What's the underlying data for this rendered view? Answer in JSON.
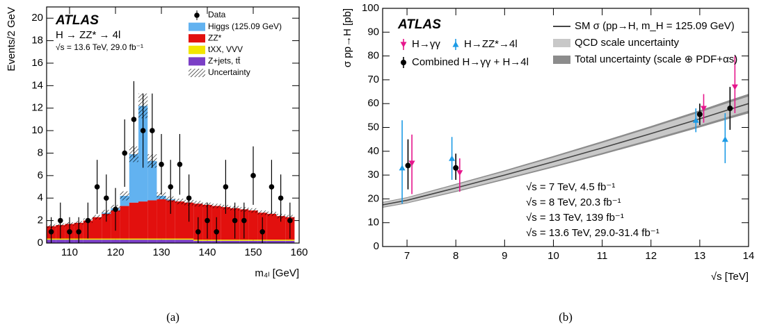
{
  "chart_data": [
    {
      "type": "histogram",
      "annotations": [
        "ATLAS",
        "H → ZZ* → 4l",
        "√s = 13.6 TeV, 29.0 fb⁻¹"
      ],
      "xlabel": "m₄ₗ [GeV]",
      "ylabel": "Events/2 GeV",
      "caption": "(a)",
      "bins": [
        105,
        107,
        109,
        111,
        113,
        115,
        117,
        119,
        121,
        123,
        125,
        127,
        129,
        131,
        133,
        135,
        137,
        139,
        141,
        143,
        145,
        147,
        149,
        151,
        153,
        155,
        157,
        159
      ],
      "xlim": [
        105,
        160
      ],
      "ylim": [
        0,
        21
      ],
      "xticks": [
        110,
        120,
        130,
        140,
        150,
        160
      ],
      "yticks": [
        0,
        2,
        4,
        6,
        8,
        10,
        12,
        14,
        16,
        18,
        20
      ],
      "series": [
        {
          "name": "Z+jets, tt̄",
          "color": "#7b3fc6",
          "values": [
            0.3,
            0.3,
            0.3,
            0.3,
            0.3,
            0.3,
            0.3,
            0.3,
            0.3,
            0.3,
            0.3,
            0.3,
            0.3,
            0.3,
            0.3,
            0.3,
            0.2,
            0.2,
            0.2,
            0.2,
            0.2,
            0.2,
            0.2,
            0.2,
            0.2,
            0.2,
            0.2
          ]
        },
        {
          "name": "tXX, VVV",
          "color": "#f2e600",
          "values": [
            0.1,
            0.1,
            0.1,
            0.1,
            0.1,
            0.1,
            0.1,
            0.1,
            0.1,
            0.1,
            0.1,
            0.1,
            0.1,
            0.1,
            0.1,
            0.1,
            0.1,
            0.1,
            0.1,
            0.1,
            0.1,
            0.1,
            0.1,
            0.1,
            0.1,
            0.1,
            0.1
          ]
        },
        {
          "name": "ZZ*",
          "color": "#e2100e",
          "values": [
            1.1,
            1.2,
            1.3,
            1.4,
            1.6,
            1.9,
            2.2,
            2.5,
            2.9,
            3.2,
            3.3,
            3.4,
            3.5,
            3.4,
            3.3,
            3.2,
            3.2,
            3.1,
            3.0,
            2.9,
            2.8,
            2.7,
            2.6,
            2.4,
            2.3,
            2.1,
            2.0
          ]
        },
        {
          "name": "Higgs (125.09 GeV)",
          "color": "#62b2f0",
          "values": [
            0,
            0,
            0,
            0,
            0,
            0,
            0.1,
            0.2,
            0.9,
            4.3,
            8.5,
            3.5,
            0.3,
            0.1,
            0,
            0,
            0,
            0,
            0,
            0,
            0,
            0,
            0,
            0,
            0,
            0,
            0
          ]
        }
      ],
      "data": {
        "name": "Data",
        "values": [
          1,
          2,
          1,
          1,
          2,
          5,
          4,
          3,
          8,
          11,
          10,
          10,
          7,
          5,
          7,
          4,
          1,
          2,
          1,
          5,
          2,
          2,
          6,
          1,
          5,
          4,
          2
        ],
        "errors": [
          1.3,
          1.6,
          1.3,
          1.3,
          1.6,
          2.4,
          2.1,
          1.9,
          3.0,
          3.4,
          3.3,
          3.3,
          2.7,
          2.4,
          2.7,
          2.1,
          1.3,
          1.6,
          1.3,
          2.4,
          1.6,
          1.6,
          2.6,
          1.3,
          2.4,
          2.1,
          1.6
        ]
      },
      "uncertainty": {
        "name": "Uncertainty",
        "values": [
          0.15,
          0.15,
          0.15,
          0.15,
          0.2,
          0.2,
          0.25,
          0.3,
          0.4,
          0.7,
          1.1,
          0.6,
          0.3,
          0.25,
          0.25,
          0.25,
          0.25,
          0.2,
          0.2,
          0.2,
          0.2,
          0.2,
          0.2,
          0.2,
          0.2,
          0.2,
          0.2
        ]
      }
    },
    {
      "type": "line",
      "annotations": [
        "ATLAS",
        "√s = 7 TeV,  4.5 fb⁻¹",
        "√s = 8 TeV,  20.3 fb⁻¹",
        "√s = 13 TeV, 139 fb⁻¹",
        "√s = 13.6 TeV, 29.0-31.4 fb⁻¹"
      ],
      "xlabel": "√s [TeV]",
      "ylabel": "σ pp→H [pb]",
      "caption": "(b)",
      "xlim": [
        6.5,
        14
      ],
      "ylim": [
        0,
        100
      ],
      "xticks": [
        7,
        8,
        9,
        10,
        11,
        12,
        13,
        14
      ],
      "yticks": [
        0,
        10,
        20,
        30,
        40,
        50,
        60,
        70,
        80,
        90,
        100
      ],
      "sm": {
        "name": "SM σ (pp→H, m_H = 125.09 GeV)",
        "color": "#444444",
        "x": [
          6.5,
          7,
          8,
          9,
          10,
          11,
          12,
          13,
          13.6,
          14
        ],
        "values": [
          17.5,
          19.4,
          24.6,
          30.0,
          35.6,
          41.4,
          47.4,
          53.6,
          57.5,
          60.0
        ],
        "qcd_name": "QCD scale uncertainty",
        "qcd_color": "#c8c8c8",
        "qcd_unc": [
          0.9,
          1.0,
          1.3,
          1.5,
          1.8,
          2.1,
          2.4,
          2.7,
          2.9,
          3.0
        ],
        "total_name": "Total uncertainty (scale ⊕ PDF+αs)",
        "total_color": "#8c8c8c",
        "total_unc": [
          1.2,
          1.3,
          1.7,
          2.0,
          2.4,
          2.8,
          3.2,
          3.6,
          3.9,
          4.1
        ]
      },
      "series": [
        {
          "name": "H→γγ",
          "color": "#e6168c",
          "marker": "down",
          "x": [
            7.1,
            8.08,
            13.08,
            13.72
          ],
          "values": [
            35,
            31,
            58,
            67
          ],
          "yerr_low": [
            13,
            8,
            6,
            11
          ],
          "yerr_high": [
            12,
            6,
            6,
            13
          ]
        },
        {
          "name": "H→ZZ*→4l",
          "color": "#1c9be6",
          "marker": "up",
          "x": [
            6.9,
            7.92,
            12.92,
            13.52
          ],
          "values": [
            33,
            37,
            53,
            45
          ],
          "yerr_low": [
            15,
            9,
            5,
            10
          ],
          "yerr_high": [
            20,
            9,
            5,
            11
          ]
        },
        {
          "name": "Combined H→γγ + H→4l",
          "color": "#000000",
          "marker": "circle",
          "x": [
            7.02,
            8.0,
            13.0,
            13.62
          ],
          "values": [
            34,
            33,
            55.5,
            58
          ],
          "yerr_low": [
            10,
            5,
            4.5,
            9
          ],
          "yerr_high": [
            11,
            6,
            4.5,
            9
          ]
        }
      ]
    }
  ]
}
